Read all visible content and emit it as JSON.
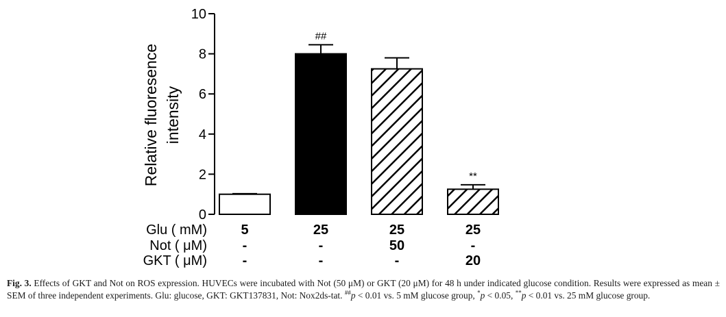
{
  "chart_data": {
    "type": "bar",
    "ylabel_line1": "Relative fluoresence",
    "ylabel_line2": "intensity",
    "ylim": [
      0,
      10
    ],
    "yticks": [
      0,
      2,
      4,
      6,
      8,
      10
    ],
    "series": [
      {
        "name": "Relative fluoresence intensity",
        "values": [
          1.0,
          8.0,
          7.25,
          1.25
        ],
        "errors": [
          0.03,
          0.45,
          0.55,
          0.22
        ]
      }
    ],
    "bar_fills": [
      "white",
      "black",
      "hatch",
      "hatch"
    ],
    "annotations": [
      "",
      "##",
      "",
      "**"
    ],
    "treatment_rows": [
      {
        "label": "Glu ( mM)",
        "values": [
          "5",
          "25",
          "25",
          "25"
        ]
      },
      {
        "label": "Not ( μM)",
        "values": [
          "-",
          "-",
          "50",
          "-"
        ]
      },
      {
        "label": "GKT ( μM)",
        "values": [
          "-",
          "-",
          "-",
          "20"
        ]
      }
    ]
  },
  "caption": {
    "fig_label": "Fig. 3.",
    "text1": "Effects of GKT and Not on ROS expression. HUVECs were incubated with Not (50 μM) or GKT (20 μM) for 48 h under indicated glucose condition. Results were expressed as mean ± SEM of three independent experiments. Glu: glucose, GKT: GKT137831, Not: Nox2ds-tat.",
    "sup1": "##",
    "p1": "p",
    "text2": " < 0.01 vs. 5 mM glucose group,",
    "sup2": "*",
    "p2": "p",
    "text3": " < 0.05,",
    "sup3": "**",
    "p3": "p",
    "text4": " < 0.01 vs. 25 mM glucose group."
  }
}
